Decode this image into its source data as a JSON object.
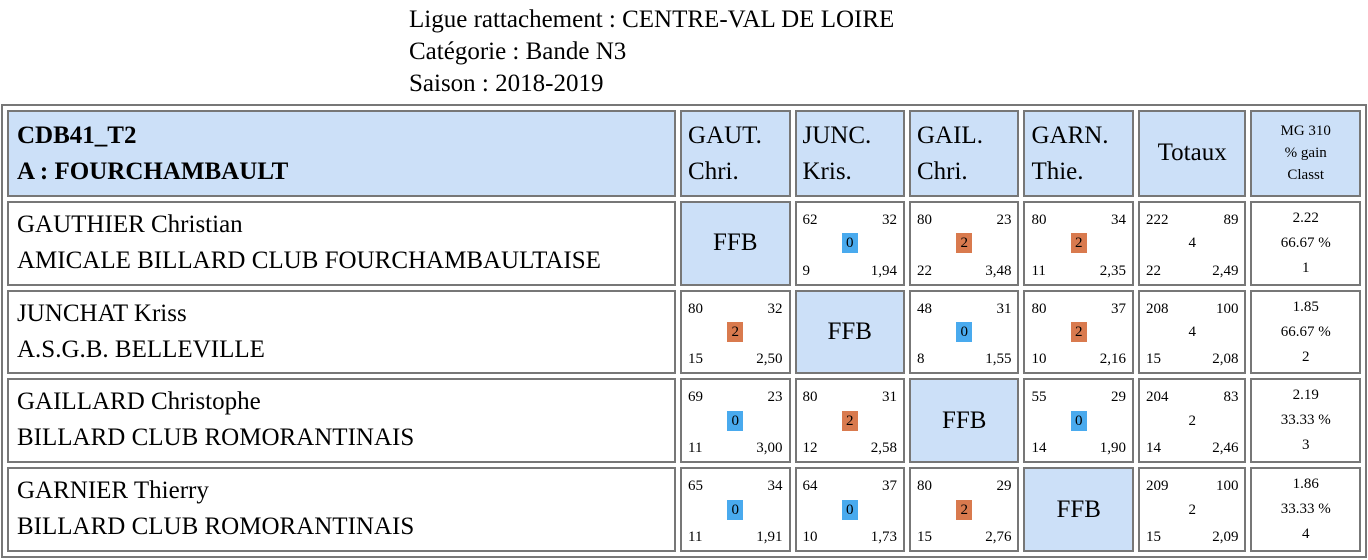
{
  "header": {
    "ligue": "Ligue rattachement : CENTRE-VAL DE LOIRE",
    "categorie": "Catégorie : Bande N3",
    "saison": "Saison : 2018-2019"
  },
  "table": {
    "group_code": "CDB41_T2",
    "team": "A : FOURCHAMBAULT",
    "columns": [
      {
        "line1": "GAUT.",
        "line2": "Chri."
      },
      {
        "line1": "JUNC.",
        "line2": "Kris."
      },
      {
        "line1": "GAIL.",
        "line2": "Chri."
      },
      {
        "line1": "GARN.",
        "line2": "Thie."
      }
    ],
    "totaux_label": "Totaux",
    "mg_label": "MG 310",
    "gain_label": "% gain",
    "classt_label": "Classt",
    "ffb_label": "FFB",
    "colors": {
      "header_bg": "#cce0f8",
      "win_badge": "#d97a4e",
      "loss_badge": "#49aaee"
    },
    "rows": [
      {
        "name": "GAUTHIER Christian",
        "club": "AMICALE BILLARD CLUB FOURCHAMBAULTAISE",
        "cells": [
          null,
          {
            "tl": "62",
            "tr": "32",
            "badge": "0",
            "bl": "9",
            "br": "1,94"
          },
          {
            "tl": "80",
            "tr": "23",
            "badge": "2",
            "bl": "22",
            "br": "3,48"
          },
          {
            "tl": "80",
            "tr": "34",
            "badge": "2",
            "bl": "11",
            "br": "2,35"
          }
        ],
        "totals": {
          "tl": "222",
          "tr": "89",
          "mid": "4",
          "bl": "22",
          "br": "2,49"
        },
        "mg": "2.22",
        "gain": "66.67 %",
        "classt": "1"
      },
      {
        "name": "JUNCHAT Kriss",
        "club": "A.S.G.B. BELLEVILLE",
        "cells": [
          {
            "tl": "80",
            "tr": "32",
            "badge": "2",
            "bl": "15",
            "br": "2,50"
          },
          null,
          {
            "tl": "48",
            "tr": "31",
            "badge": "0",
            "bl": "8",
            "br": "1,55"
          },
          {
            "tl": "80",
            "tr": "37",
            "badge": "2",
            "bl": "10",
            "br": "2,16"
          }
        ],
        "totals": {
          "tl": "208",
          "tr": "100",
          "mid": "4",
          "bl": "15",
          "br": "2,08"
        },
        "mg": "1.85",
        "gain": "66.67 %",
        "classt": "2"
      },
      {
        "name": "GAILLARD Christophe",
        "club": "BILLARD CLUB ROMORANTINAIS",
        "cells": [
          {
            "tl": "69",
            "tr": "23",
            "badge": "0",
            "bl": "11",
            "br": "3,00"
          },
          {
            "tl": "80",
            "tr": "31",
            "badge": "2",
            "bl": "12",
            "br": "2,58"
          },
          null,
          {
            "tl": "55",
            "tr": "29",
            "badge": "0",
            "bl": "14",
            "br": "1,90"
          }
        ],
        "totals": {
          "tl": "204",
          "tr": "83",
          "mid": "2",
          "bl": "14",
          "br": "2,46"
        },
        "mg": "2.19",
        "gain": "33.33 %",
        "classt": "3"
      },
      {
        "name": "GARNIER Thierry",
        "club": "BILLARD CLUB ROMORANTINAIS",
        "cells": [
          {
            "tl": "65",
            "tr": "34",
            "badge": "0",
            "bl": "11",
            "br": "1,91"
          },
          {
            "tl": "64",
            "tr": "37",
            "badge": "0",
            "bl": "10",
            "br": "1,73"
          },
          {
            "tl": "80",
            "tr": "29",
            "badge": "2",
            "bl": "15",
            "br": "2,76"
          },
          null
        ],
        "totals": {
          "tl": "209",
          "tr": "100",
          "mid": "2",
          "bl": "15",
          "br": "2,09"
        },
        "mg": "1.86",
        "gain": "33.33 %",
        "classt": "4"
      }
    ]
  }
}
